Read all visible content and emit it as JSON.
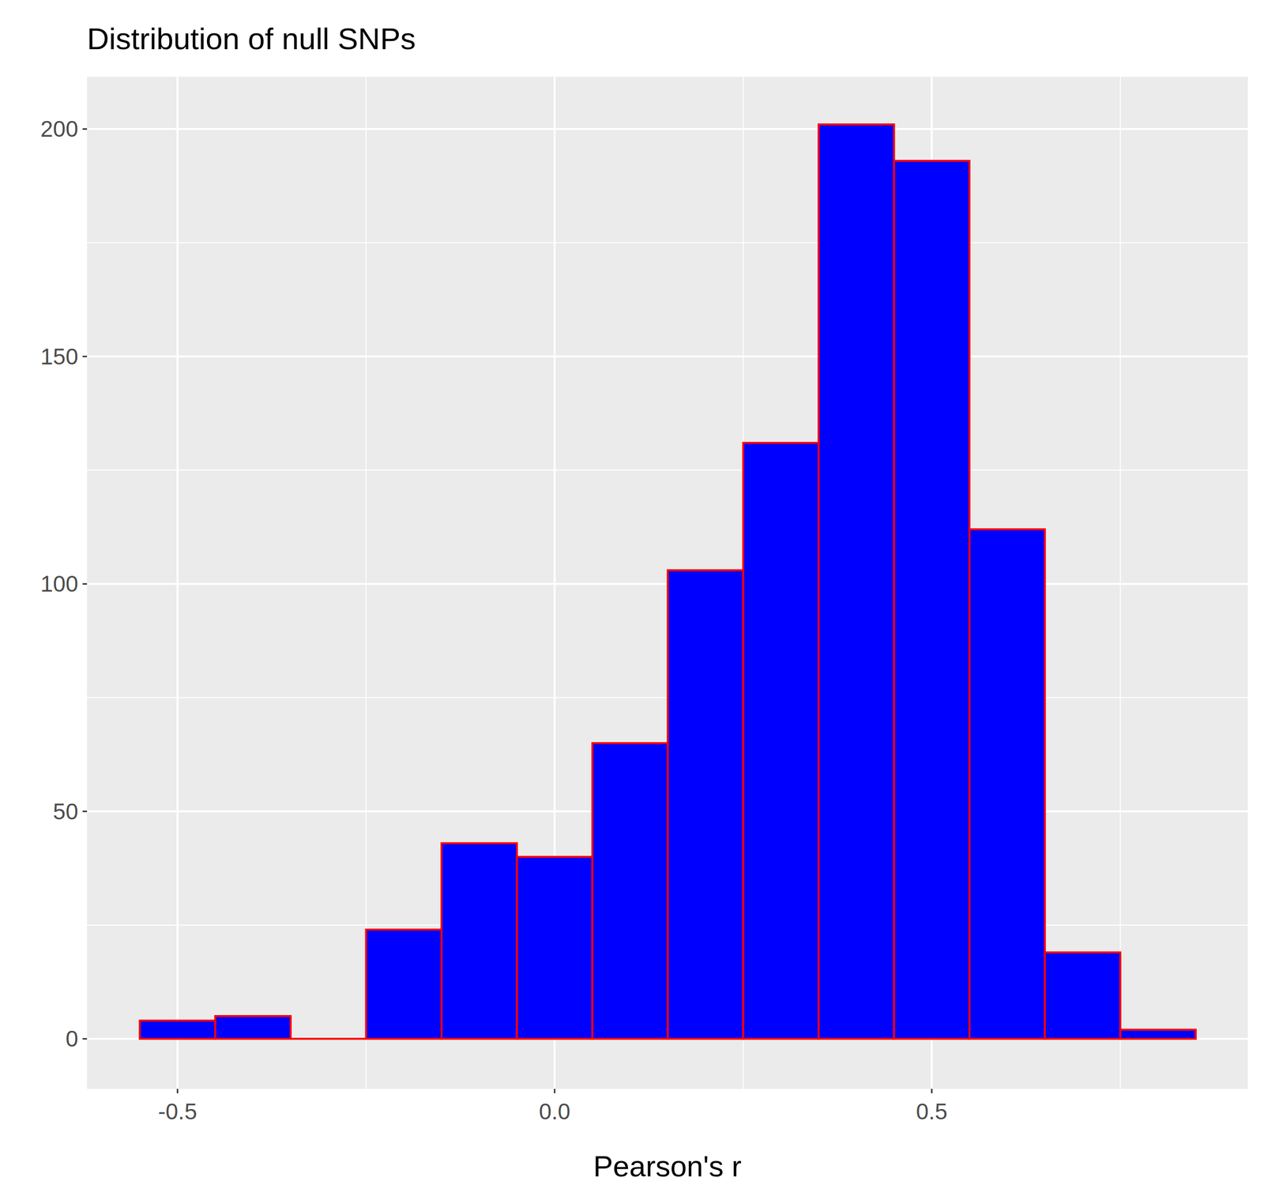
{
  "chart_data": {
    "type": "histogram",
    "title": "Distribution of null SNPs",
    "x_label": "Pearson's r",
    "bins": [
      -0.55,
      -0.45,
      -0.35,
      -0.25,
      -0.15,
      -0.05,
      0.05,
      0.15,
      0.25,
      0.35,
      0.45,
      0.55,
      0.65,
      0.75,
      0.85
    ],
    "values": [
      4,
      5,
      0,
      24,
      43,
      40,
      65,
      103,
      131,
      201,
      193,
      112,
      19,
      2
    ],
    "color": "#0000ff",
    "xlim": [
      -0.62,
      0.919
    ],
    "ylim": [
      -11,
      211.5
    ],
    "xticks": [
      -0.5,
      {
        "value": 0,
        "label": "0.0"
      },
      0.5
    ],
    "yticks": [
      0,
      50,
      100,
      150,
      200
    ],
    "grid": true
  }
}
